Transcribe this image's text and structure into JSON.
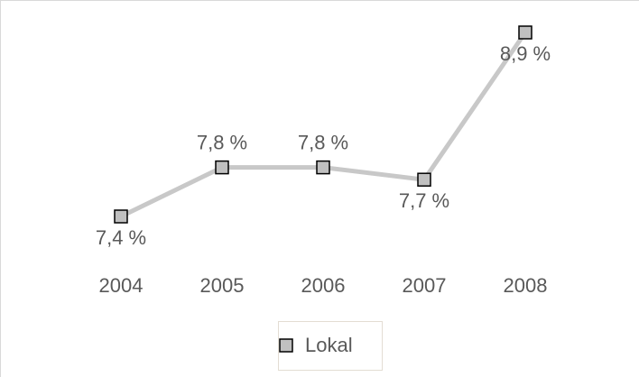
{
  "chart_data": {
    "type": "line",
    "categories": [
      "2004",
      "2005",
      "2006",
      "2007",
      "2008"
    ],
    "series": [
      {
        "name": "Lokal",
        "color": "#c8c8c8",
        "marker_color": "#c0c0c0",
        "values": [
          7.4,
          7.8,
          7.8,
          7.7,
          8.9
        ],
        "value_labels": [
          "7,4 %",
          "7,8 %",
          "7,8 %",
          "7,7 %",
          "8,9 %"
        ]
      }
    ],
    "legend": "bottom"
  }
}
